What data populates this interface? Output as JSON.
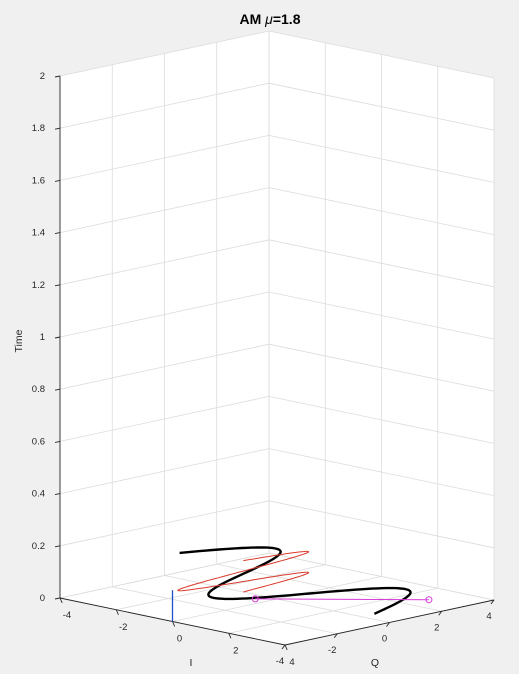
{
  "chart_data": {
    "type": "line",
    "title_prefix": "AM ",
    "title_symbol": "μ",
    "title_suffix": "=1.8",
    "xlabel": "I",
    "ylabel": "Q",
    "zlabel": "Time",
    "xlim": [
      -4,
      4
    ],
    "ylim": [
      -4,
      4
    ],
    "zlim": [
      0,
      2
    ],
    "x_ticks": [
      "-4",
      "-2",
      "0",
      "2",
      "4"
    ],
    "y_ticks": [
      "-4",
      "-2",
      "0",
      "2",
      "4"
    ],
    "z_ticks": [
      "0",
      "0.2",
      "0.4",
      "0.6",
      "0.8",
      "1",
      "1.2",
      "1.4",
      "1.6",
      "1.8",
      "2"
    ],
    "grid": true,
    "series": [
      {
        "role": "signal-trajectory",
        "color": "#000000",
        "style": "solid-thick",
        "start": [
          -3,
          -0.5,
          0.12
        ],
        "end": [
          3,
          0.5,
          0.0
        ],
        "amplitude": 2.5,
        "cycles": 1.5
      },
      {
        "role": "IQ-plane-projection",
        "color": "#d63ad6",
        "style": "line-with-circle-markers",
        "points": [
          [
            -0.4,
            -0.4,
            0
          ],
          [
            2.8,
            2.8,
            0
          ]
        ]
      },
      {
        "role": "I-Time-wall-projection",
        "color": "#2050c8",
        "style": "solid",
        "x": 0,
        "z_range": [
          0.0,
          0.12
        ]
      },
      {
        "role": "Q-Time-wall-projection",
        "color": "#d93a2b",
        "style": "solid",
        "amplitude": 2.5,
        "cycles": 1.5,
        "z_range": [
          0.0,
          0.12
        ]
      }
    ]
  }
}
